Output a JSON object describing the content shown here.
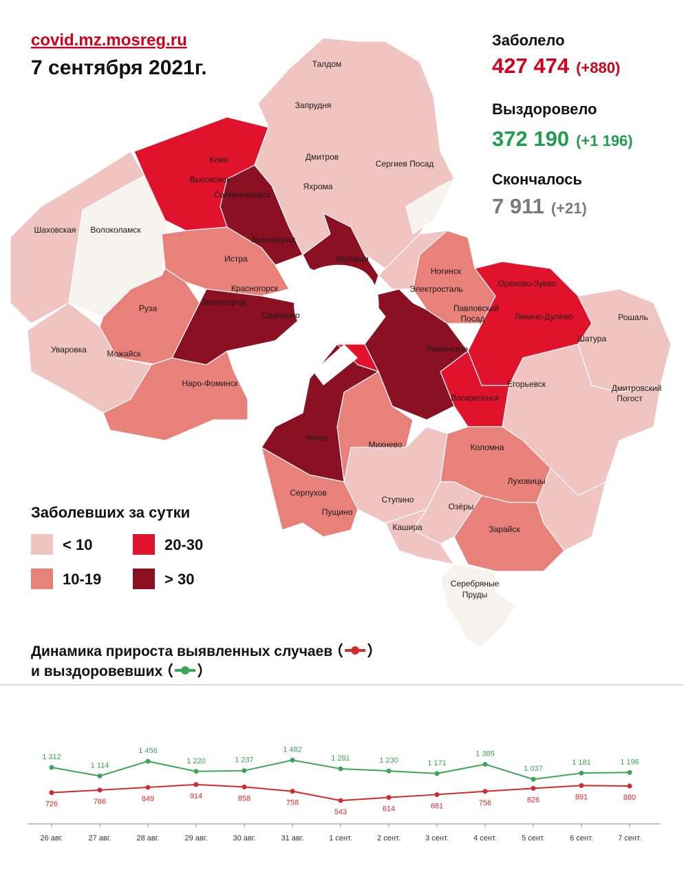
{
  "header": {
    "source": "covid.mz.mosreg.ru",
    "date": "7 сентября 2021г."
  },
  "stats": [
    {
      "label": "Заболело",
      "value": "427 474",
      "delta": "(+880)",
      "color": "#d0021b"
    },
    {
      "label": "Выздоровело",
      "value": "372 190",
      "delta": "(+1 196)",
      "color": "#1f9d4c"
    },
    {
      "label": "Скончалось",
      "value": "7 911",
      "delta": "(+21)",
      "color": "#7a7a7a"
    }
  ],
  "legend": {
    "title": "Заболевших за сутки",
    "items": [
      {
        "label": "< 10",
        "color": "#f0c4c0"
      },
      {
        "label": "10-19",
        "color": "#e8817a"
      },
      {
        "label": "20-30",
        "color": "#e1132c"
      },
      {
        "label": "> 30",
        "color": "#8b1021"
      }
    ]
  },
  "map": {
    "labels": [
      "Талдом",
      "Запрудня",
      "Дмитров",
      "Яхрома",
      "Сергиев Посад",
      "Клин",
      "Высоковск",
      "Солнечногорск",
      "Шаховская",
      "Волоколамск",
      "Зеленоград",
      "Истра",
      "Мытищи",
      "Ногинск",
      "Электросталь",
      "Орехово-Зуево",
      "Павловский",
      "Посад",
      "Ликино-Дулёво",
      "Рошаль",
      "Красногорск",
      "Звенигород",
      "Одинцово",
      "Руза",
      "Шатура",
      "Уваровка",
      "Можайск",
      "Раменское",
      "Наро-Фоминск",
      "Егорьевск",
      "Дмитровский",
      "Погост",
      "Воскресенск",
      "Чехов",
      "Михнево",
      "Коломна",
      "Луховицы",
      "Серпухов",
      "Пущино",
      "Ступино",
      "Озёры",
      "Кашира",
      "Зарайск",
      "Серебряные",
      "Пруды"
    ]
  },
  "chart_data": {
    "type": "line",
    "title": [
      "Динамика прироста выявленных случаев",
      "и выздоровевших"
    ],
    "categories": [
      "26 авг.",
      "27 авг.",
      "28 авг.",
      "29 авг.",
      "30 авг.",
      "31 авг.",
      "1 сент.",
      "2 сент.",
      "3 сент.",
      "4 сент.",
      "5 сент.",
      "6 сент.",
      "7 сент."
    ],
    "ylim": [
      0,
      2000
    ],
    "series": [
      {
        "color": "#d42a2a",
        "values": [
          726,
          786,
          849,
          914,
          858,
          758,
          543,
          614,
          681,
          756,
          826,
          891,
          880
        ]
      },
      {
        "color": "#3aa655",
        "values": [
          1312,
          1114,
          1456,
          1220,
          1237,
          1482,
          1281,
          1230,
          1171,
          1385,
          1037,
          1181,
          1196
        ],
        "value_labels": [
          "1 312",
          "1 114",
          "1 456",
          "1 220",
          "1 237",
          "1 482",
          "1 281",
          "1 230",
          "1 171",
          "1 385",
          "1 037",
          "1 181",
          "1 196"
        ]
      }
    ]
  }
}
